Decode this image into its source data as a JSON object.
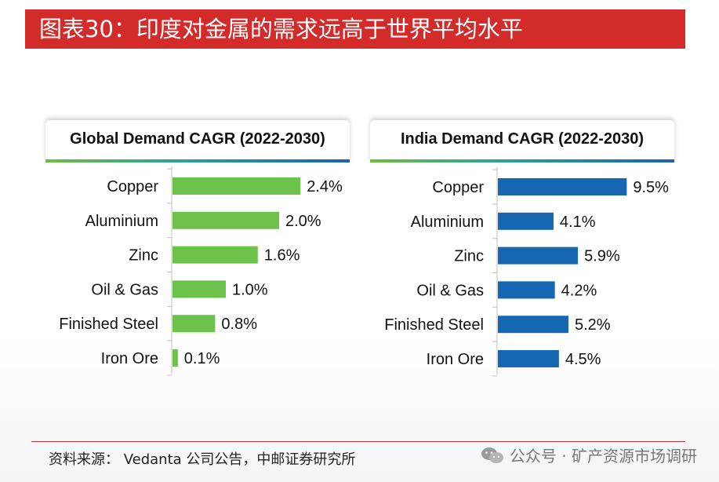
{
  "page_title": "图表30：印度对金属的需求远高于世界平均水平",
  "source": "资料来源： Vedanta 公司公告，中邮证券研究所",
  "watermark": "公众号 · 矿产资源市场调研",
  "colors": {
    "title_bg": "#d32a2a",
    "global_bar": "#6cc24a",
    "india_bar": "#1467b0"
  },
  "chart_data": [
    {
      "type": "bar",
      "orientation": "horizontal",
      "title": "Global Demand CAGR (2022-2030)",
      "categories": [
        "Copper",
        "Aluminium",
        "Zinc",
        "Oil & Gas",
        "Finished Steel",
        "Iron Ore"
      ],
      "values": [
        2.4,
        2.0,
        1.6,
        1.0,
        0.8,
        0.1
      ],
      "labels": [
        "2.4%",
        "2.0%",
        "1.6%",
        "1.0%",
        "0.8%",
        "0.1%"
      ],
      "unit": "%",
      "color": "#6cc24a",
      "grid": false
    },
    {
      "type": "bar",
      "orientation": "horizontal",
      "title": "India Demand CAGR (2022-2030)",
      "categories": [
        "Copper",
        "Aluminium",
        "Zinc",
        "Oil & Gas",
        "Finished Steel",
        "Iron Ore"
      ],
      "values": [
        9.5,
        4.1,
        5.9,
        4.2,
        5.2,
        4.5
      ],
      "labels": [
        "9.5%",
        "4.1%",
        "5.9%",
        "4.2%",
        "5.2%",
        "4.5%"
      ],
      "unit": "%",
      "color": "#1467b0",
      "grid": false
    }
  ]
}
